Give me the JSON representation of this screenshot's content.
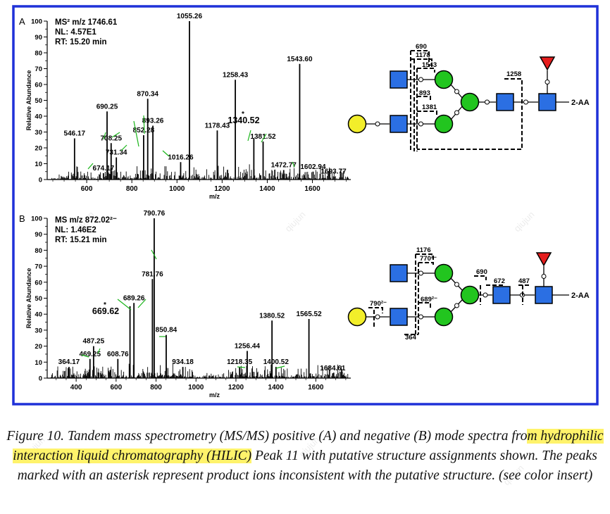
{
  "figure": {
    "border_color": "#1f31d8",
    "panels": [
      {
        "id": "A",
        "letter": "A",
        "header_lines": [
          "MS² m/z 1746.61",
          "NL: 4.57E1",
          "RT: 15.20 min"
        ],
        "ylabel": "Relative Abundance",
        "xlabel": "m/z",
        "star_label": "1340.52",
        "chart_data": {
          "type": "bar",
          "x_range": [
            425,
            1770
          ],
          "y_range": [
            0,
            100
          ],
          "x_ticks": [
            600,
            800,
            1000,
            1200,
            1400,
            1600
          ],
          "y_ticks": [
            0,
            10,
            20,
            30,
            40,
            50,
            60,
            70,
            80,
            90,
            100
          ],
          "peaks": [
            {
              "mz": 546.17,
              "ab": 26,
              "label": "546.17"
            },
            {
              "mz": 674.17,
              "ab": 4,
              "label": "674.17"
            },
            {
              "mz": 690.25,
              "ab": 43,
              "label": "690.25"
            },
            {
              "mz": 708.25,
              "ab": 23,
              "label": "708.25"
            },
            {
              "mz": 731.34,
              "ab": 14,
              "label": "731.34"
            },
            {
              "mz": 852.28,
              "ab": 28,
              "label": "852.28"
            },
            {
              "mz": 870.34,
              "ab": 51,
              "label": "870.34"
            },
            {
              "mz": 893.26,
              "ab": 34,
              "label": "893.26"
            },
            {
              "mz": 1016.26,
              "ab": 11,
              "label": "1016.26"
            },
            {
              "mz": 1055.26,
              "ab": 100,
              "label": "1055.26"
            },
            {
              "mz": 1178.43,
              "ab": 31,
              "label": "1178.43"
            },
            {
              "mz": 1258.43,
              "ab": 63,
              "label": "1258.43"
            },
            {
              "mz": 1340.52,
              "ab": 26,
              "label": ""
            },
            {
              "mz": 1381.52,
              "ab": 24,
              "label": "1381.52"
            },
            {
              "mz": 1472.77,
              "ab": 6,
              "label": "1472.77"
            },
            {
              "mz": 1543.6,
              "ab": 73,
              "label": "1543.60"
            },
            {
              "mz": 1602.94,
              "ab": 5,
              "label": "1602.94"
            },
            {
              "mz": 1693.77,
              "ab": 2,
              "label": "1693.77"
            }
          ]
        }
      },
      {
        "id": "B",
        "letter": "B",
        "header_lines": [
          "MS m/z 872.02²⁻",
          "NL: 1.46E2",
          "RT: 15.21 min"
        ],
        "ylabel": "Relative Abundance",
        "xlabel": "m/z",
        "star_label": "669.62",
        "chart_data": {
          "type": "bar",
          "x_range": [
            255,
            1775
          ],
          "y_range": [
            0,
            100
          ],
          "x_ticks": [
            400,
            600,
            800,
            1000,
            1200,
            1400,
            1600
          ],
          "y_ticks": [
            0,
            10,
            20,
            30,
            40,
            50,
            60,
            70,
            80,
            90,
            100
          ],
          "peaks": [
            {
              "mz": 364.17,
              "ab": 7,
              "label": "364.17"
            },
            {
              "mz": 469.25,
              "ab": 12,
              "label": "469.25"
            },
            {
              "mz": 487.25,
              "ab": 20,
              "label": "487.25"
            },
            {
              "mz": 608.76,
              "ab": 12,
              "label": "608.76"
            },
            {
              "mz": 669.62,
              "ab": 45,
              "label": ""
            },
            {
              "mz": 689.26,
              "ab": 47,
              "label": "689.26"
            },
            {
              "mz": 781.76,
              "ab": 62,
              "label": "781.76"
            },
            {
              "mz": 790.76,
              "ab": 100,
              "label": "790.76"
            },
            {
              "mz": 850.84,
              "ab": 27,
              "label": "850.84"
            },
            {
              "mz": 934.18,
              "ab": 7,
              "label": "934.18"
            },
            {
              "mz": 1218.35,
              "ab": 7,
              "label": "1218.35"
            },
            {
              "mz": 1256.44,
              "ab": 17,
              "label": "1256.44"
            },
            {
              "mz": 1380.52,
              "ab": 36,
              "label": "1380.52"
            },
            {
              "mz": 1400.52,
              "ab": 7,
              "label": "1400.52"
            },
            {
              "mz": 1565.52,
              "ab": 37,
              "label": "1565.52"
            },
            {
              "mz": 1684.61,
              "ab": 3,
              "label": "1684.61"
            }
          ]
        }
      }
    ],
    "structure_A": {
      "reducing_end_label": "2-AA",
      "fragment_labels": [
        "690",
        "1178",
        "1543",
        "893",
        "1381",
        "1258"
      ]
    },
    "structure_B": {
      "reducing_end_label": "2-AA",
      "fragment_labels": [
        "1176",
        "770²⁻",
        "690",
        "672",
        "487",
        "689²⁻",
        "790²⁻",
        "364"
      ]
    },
    "colors": {
      "hexnac": "#2b6fe3",
      "hexose": "#22c51f",
      "galactose": "#f2ee2a",
      "fucose": "#e51d1d",
      "annotation_line": "#1bb51b"
    },
    "watermark": "qiujun"
  },
  "caption": {
    "text_a": "Figure 10. Tandem mass spectrometry (MS/MS) positive (A) and negative (B) mode spectra fro",
    "highlight": "m hydrophilic interaction liquid chromatography (HILIC)",
    "text_b": " Peak 11 with putative structure assignments shown. The peaks marked with an asterisk represent product ions inconsistent with the putative structure. (see color insert)"
  }
}
